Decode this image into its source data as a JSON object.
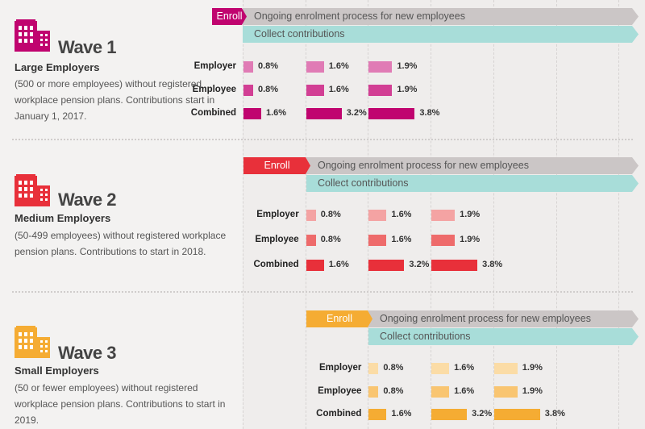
{
  "waves": [
    {
      "title": "Wave 1",
      "subtitle": "Large Employers",
      "description": "(500 or more employees) without registered workplace pension plans. Contributions start in January 1, 2017.",
      "enroll_label": "Enroll",
      "ongoing_label": "Ongoing enrolment process for new employees",
      "collect_label": "Collect contributions",
      "icon": "building-icon",
      "color": "#c0046f",
      "row_colors": [
        "#e07bb5",
        "#d23f94",
        "#c0046f"
      ],
      "rows": [
        {
          "label": "Employer",
          "values": [
            "0.8%",
            "1.6%",
            "1.9%"
          ]
        },
        {
          "label": "Employee",
          "values": [
            "0.8%",
            "1.6%",
            "1.9%"
          ]
        },
        {
          "label": "Combined",
          "values": [
            "1.6%",
            "3.2%",
            "3.8%"
          ]
        }
      ]
    },
    {
      "title": "Wave 2",
      "subtitle": "Medium Employers",
      "description": "(50-499 employees) without registered workplace pension plans. Contributions to start in 2018.",
      "enroll_label": "Enroll",
      "ongoing_label": "Ongoing enrolment process for new employees",
      "collect_label": "Collect contributions",
      "icon": "building-icon",
      "color": "#e8303a",
      "row_colors": [
        "#f4a3a3",
        "#ee6b6b",
        "#e8303a"
      ],
      "rows": [
        {
          "label": "Employer",
          "values": [
            "0.8%",
            "1.6%",
            "1.9%"
          ]
        },
        {
          "label": "Employee",
          "values": [
            "0.8%",
            "1.6%",
            "1.9%"
          ]
        },
        {
          "label": "Combined",
          "values": [
            "1.6%",
            "3.2%",
            "3.8%"
          ]
        }
      ]
    },
    {
      "title": "Wave 3",
      "subtitle": "Small Employers",
      "description": "(50 or fewer employees) without registered workplace pension plans. Contributions to start in 2019.",
      "enroll_label": "Enroll",
      "ongoing_label": "Ongoing enrolment process for new employees",
      "collect_label": "Collect contributions",
      "icon": "building-icon",
      "color": "#f5ac33",
      "row_colors": [
        "#fbdca6",
        "#f9c571",
        "#f5ac33"
      ],
      "rows": [
        {
          "label": "Employer",
          "values": [
            "0.8%",
            "1.6%",
            "1.9%"
          ]
        },
        {
          "label": "Employee",
          "values": [
            "0.8%",
            "1.6%",
            "1.9%"
          ]
        },
        {
          "label": "Combined",
          "values": [
            "1.6%",
            "3.2%",
            "3.8%"
          ]
        }
      ]
    }
  ],
  "colors": {
    "ongoing_band": "#cbc6c6",
    "collect_band": "#a8ddd9",
    "background": "#efedec"
  }
}
